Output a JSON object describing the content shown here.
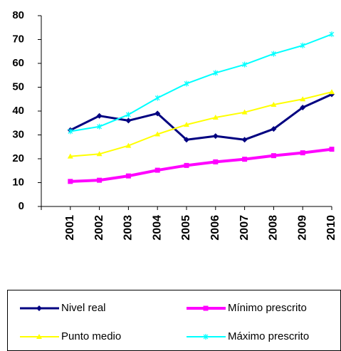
{
  "chart_data": {
    "type": "line",
    "categories": [
      "2001",
      "2002",
      "2003",
      "2004",
      "2005",
      "2006",
      "2007",
      "2008",
      "2009",
      "2010"
    ],
    "series": [
      {
        "name": "Nivel real",
        "color": "#000080",
        "marker": "diamond",
        "values": [
          32,
          38,
          36,
          39,
          28,
          29.5,
          28,
          32.5,
          41.5,
          47
        ]
      },
      {
        "name": "Mínimo prescrito",
        "color": "#ff00ff",
        "marker": "square",
        "values": [
          10.5,
          11,
          12.8,
          15.2,
          17.2,
          18.7,
          19.8,
          21.3,
          22.5,
          24
        ]
      },
      {
        "name": "Punto medio",
        "color": "#ffff00",
        "marker": "triangle",
        "values": [
          21,
          22,
          25.5,
          30.3,
          34.3,
          37.3,
          39.5,
          42.7,
          45,
          48
        ]
      },
      {
        "name": "Máximo prescrito",
        "color": "#00ffff",
        "marker": "x",
        "values": [
          31.5,
          33.5,
          38.5,
          45.5,
          51.5,
          56,
          59.5,
          64,
          67.5,
          72.2
        ]
      }
    ],
    "ylim": [
      0,
      80
    ],
    "yticks": [
      0,
      10,
      20,
      30,
      40,
      50,
      60,
      70,
      80
    ],
    "grid": false,
    "legend": "bottom"
  }
}
